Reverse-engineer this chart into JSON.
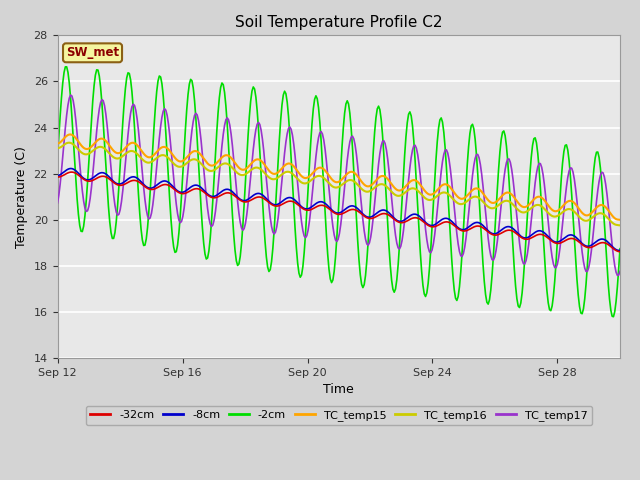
{
  "title": "Soil Temperature Profile C2",
  "xlabel": "Time",
  "ylabel": "Temperature (C)",
  "ylim": [
    14,
    28
  ],
  "yticks": [
    14,
    16,
    18,
    20,
    22,
    24,
    26,
    28
  ],
  "fig_bg_color": "#d4d4d4",
  "plot_bg_color": "#e8e8e8",
  "annotation_label": "SW_met",
  "annotation_color": "#8B0000",
  "annotation_bg": "#f5f5a0",
  "annotation_border": "#8B6014",
  "series": {
    "-32cm": {
      "color": "#dd0000",
      "lw": 1.2
    },
    "-8cm": {
      "color": "#0000cc",
      "lw": 1.2
    },
    "-2cm": {
      "color": "#00dd00",
      "lw": 1.2
    },
    "TC_temp15": {
      "color": "#ffa500",
      "lw": 1.5
    },
    "TC_temp16": {
      "color": "#cccc00",
      "lw": 1.5
    },
    "TC_temp17": {
      "color": "#9933cc",
      "lw": 1.2
    }
  },
  "xtick_labels": [
    "Sep 12",
    "Sep 16",
    "Sep 20",
    "Sep 24",
    "Sep 28"
  ],
  "xtick_positions": [
    0,
    4,
    8,
    12,
    16
  ],
  "n_days": 18
}
